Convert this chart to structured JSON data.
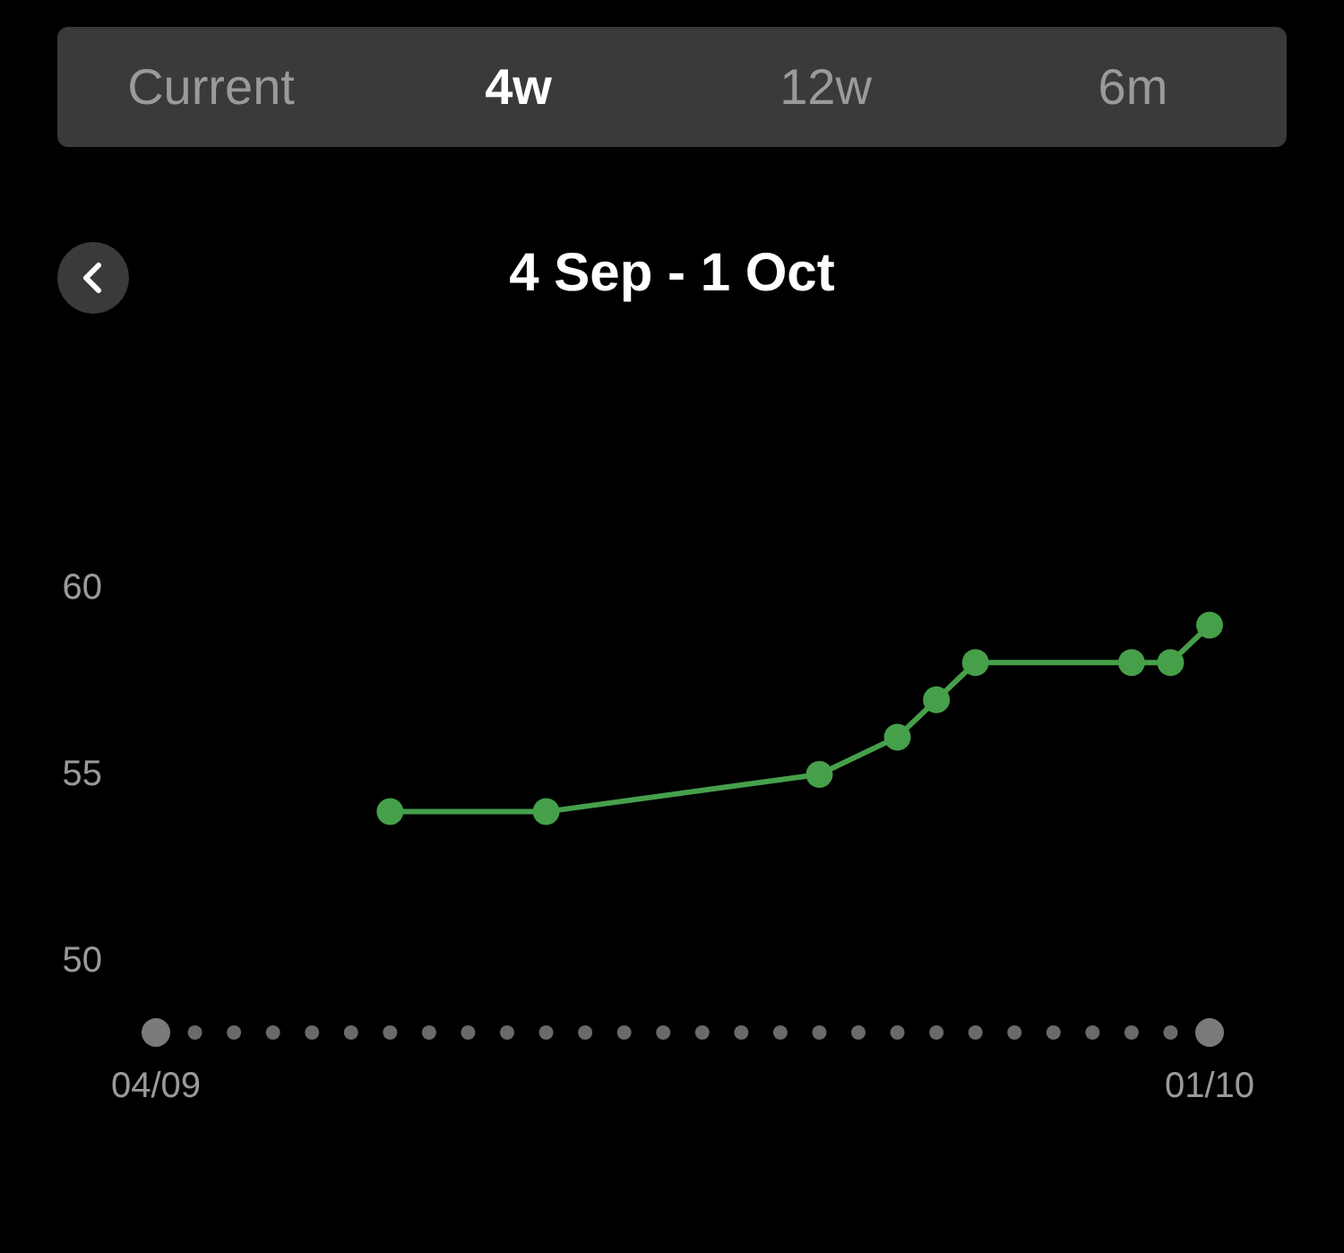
{
  "chart_data": {
    "type": "line",
    "title": "4 Sep - 1 Oct",
    "annotations": [
      "Current",
      "4w",
      "12w",
      "6m"
    ],
    "x": [
      "--09-10",
      "--09-14",
      "--09-21",
      "--09-23",
      "--09-24",
      "--09-25",
      "--09-29",
      "--09-30",
      "--10-01"
    ],
    "series": [
      {
        "color": "#46a04a",
        "values": [
          54,
          54,
          55,
          56,
          57,
          58,
          58,
          58,
          59
        ]
      }
    ],
    "xlim": [
      "--09-04",
      "--10-01"
    ],
    "xticks": [
      {
        "value": "--09-04",
        "label": "04/09"
      },
      {
        "value": "--10-01",
        "label": "01/10"
      }
    ],
    "ylim": [
      50,
      60
    ],
    "yticks": [
      50,
      55,
      60
    ],
    "grid": false,
    "marker": "circle",
    "line_style": "solid"
  }
}
